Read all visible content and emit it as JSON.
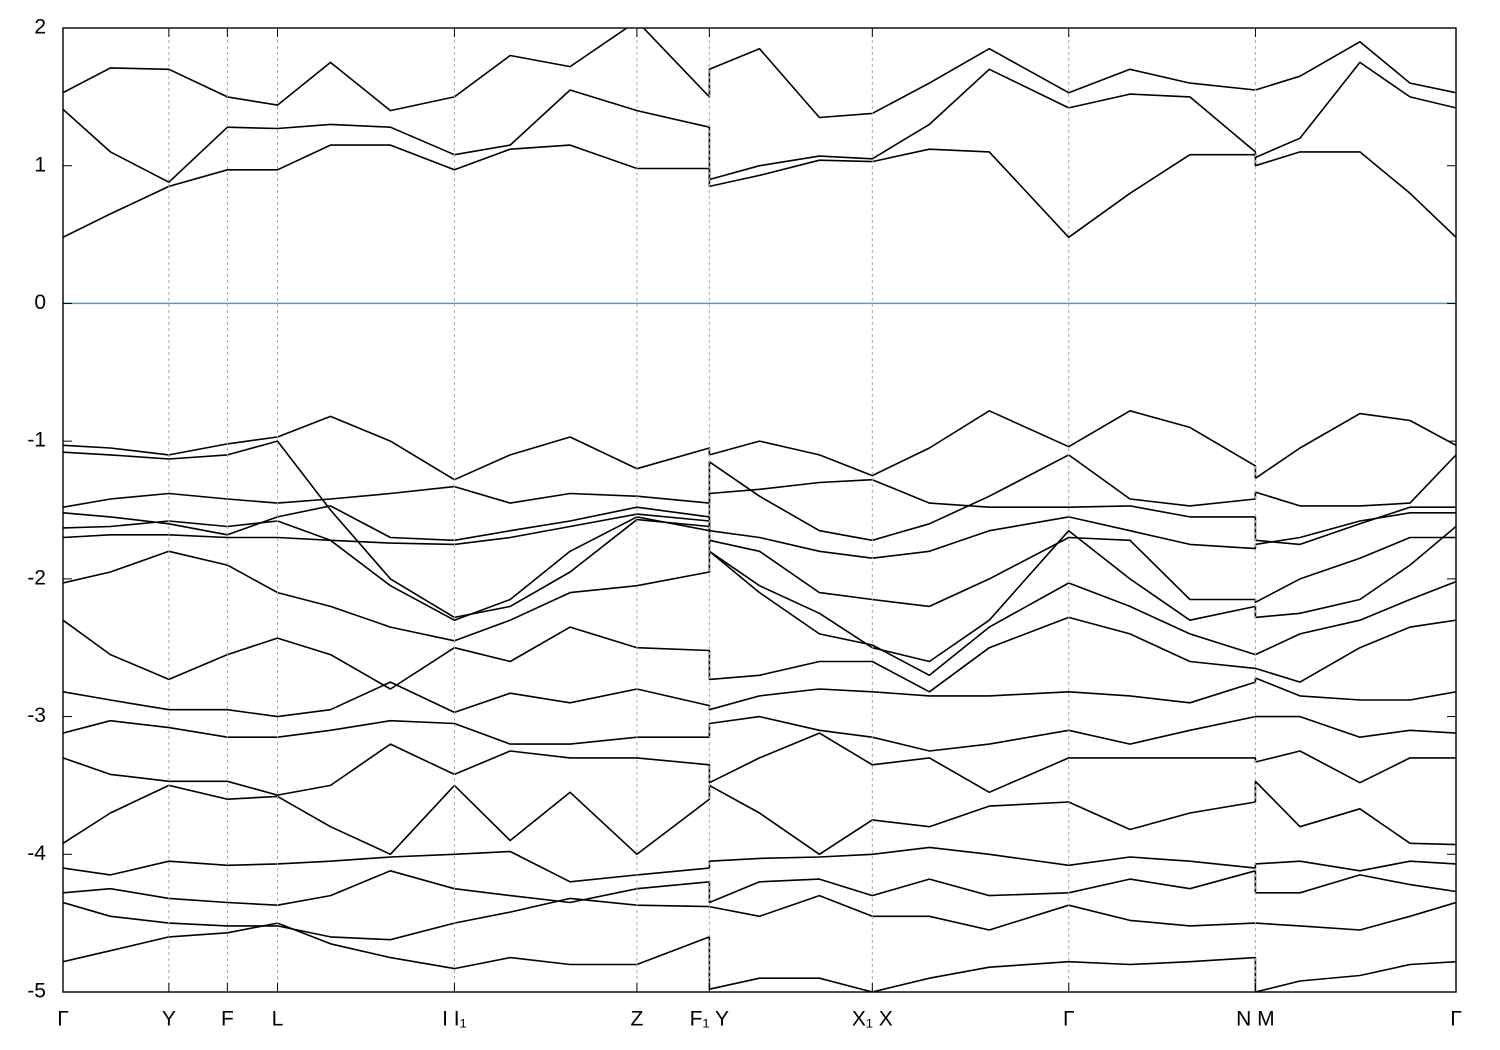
{
  "chart_data": {
    "type": "line",
    "color": "#000000",
    "fermi_level": 0,
    "fermi_color": "#4aa3c4",
    "grid": true,
    "xlim": [
      0,
      1
    ],
    "ylim": [
      -5,
      2
    ],
    "yticks": [
      2,
      1,
      0,
      -1,
      -2,
      -3,
      -4,
      -5
    ],
    "xticks": [
      {
        "value": 0,
        "label": "Γ"
      },
      {
        "value": 0.076,
        "label": "Y"
      },
      {
        "value": 0.118,
        "label": "F"
      },
      {
        "value": 0.154,
        "label": "L"
      },
      {
        "value": 0.281,
        "label": "I  I₁"
      },
      {
        "value": 0.412,
        "label": "Z"
      },
      {
        "value": 0.464,
        "label": "F₁ Y"
      },
      {
        "value": 0.581,
        "label": "X₁ X"
      },
      {
        "value": 0.722,
        "label": "Γ"
      },
      {
        "value": 0.856,
        "label": "N M"
      },
      {
        "value": 1,
        "label": "Γ"
      }
    ],
    "x": [
      0,
      0.034,
      0.076,
      0.118,
      0.154,
      0.192,
      0.235,
      0.281,
      0.321,
      0.364,
      0.412,
      0.464,
      0.464,
      0.5,
      0.543,
      0.581,
      0.622,
      0.665,
      0.722,
      0.766,
      0.809,
      0.856,
      0.856,
      0.888,
      0.931,
      0.967,
      1
    ],
    "series": [
      {
        "values": [
          0.48,
          0.65,
          0.85,
          0.97,
          0.97,
          1.15,
          1.15,
          0.97,
          1.12,
          1.15,
          0.98,
          0.98,
          0.85,
          0.93,
          1.04,
          1.03,
          1.12,
          1.1,
          0.48,
          0.8,
          1.08,
          1.08,
          1.0,
          1.1,
          1.1,
          0.8,
          0.48
        ]
      },
      {
        "values": [
          1.41,
          1.1,
          0.88,
          1.28,
          1.27,
          1.3,
          1.28,
          1.08,
          1.15,
          1.55,
          1.4,
          1.28,
          0.9,
          1.0,
          1.07,
          1.05,
          1.3,
          1.7,
          1.42,
          1.52,
          1.5,
          1.1,
          1.06,
          1.2,
          1.75,
          1.5,
          1.42
        ]
      },
      {
        "values": [
          1.53,
          1.71,
          1.7,
          1.5,
          1.44,
          1.75,
          1.4,
          1.5,
          1.8,
          1.72,
          2.05,
          1.5,
          1.7,
          1.85,
          1.35,
          1.38,
          1.6,
          1.85,
          1.53,
          1.7,
          1.6,
          1.55,
          1.55,
          1.65,
          1.9,
          1.6,
          1.53
        ]
      },
      {
        "values": [
          -1.03,
          -1.05,
          -1.1,
          -1.02,
          -0.97,
          -0.82,
          -1.0,
          -1.28,
          -1.1,
          -0.97,
          -1.2,
          -1.05,
          -1.1,
          -1.0,
          -1.1,
          -1.25,
          -1.05,
          -0.78,
          -1.04,
          -0.78,
          -0.9,
          -1.18,
          -1.27,
          -1.05,
          -0.8,
          -0.85,
          -1.03
        ]
      },
      {
        "values": [
          -1.08,
          -1.1,
          -1.13,
          -1.1,
          -1.0,
          -1.5,
          -2.0,
          -2.28,
          -2.2,
          -1.95,
          -1.57,
          -1.62,
          -1.15,
          -1.4,
          -1.65,
          -1.72,
          -1.6,
          -1.4,
          -1.1,
          -1.42,
          -1.47,
          -1.42,
          -1.37,
          -1.47,
          -1.47,
          -1.45,
          -1.1
        ]
      },
      {
        "values": [
          -1.48,
          -1.42,
          -1.38,
          -1.42,
          -1.45,
          -1.42,
          -1.38,
          -1.33,
          -1.45,
          -1.38,
          -1.4,
          -1.45,
          -1.38,
          -1.35,
          -1.3,
          -1.28,
          -1.45,
          -1.48,
          -1.48,
          -1.47,
          -1.55,
          -1.55,
          -1.72,
          -1.75,
          -1.6,
          -1.48,
          -1.48
        ]
      },
      {
        "values": [
          -1.52,
          -1.55,
          -1.6,
          -1.68,
          -1.55,
          -1.47,
          -1.7,
          -1.72,
          -1.65,
          -1.58,
          -1.48,
          -1.55,
          -1.65,
          -1.7,
          -1.8,
          -1.85,
          -1.8,
          -1.65,
          -1.55,
          -1.65,
          -1.75,
          -1.78,
          -1.75,
          -1.7,
          -1.58,
          -1.52,
          -1.52
        ]
      },
      {
        "values": [
          -1.63,
          -1.62,
          -1.58,
          -1.62,
          -1.58,
          -1.72,
          -1.74,
          -1.75,
          -1.7,
          -1.62,
          -1.53,
          -1.58,
          -1.72,
          -1.8,
          -2.1,
          -2.15,
          -2.2,
          -2.0,
          -1.7,
          -1.72,
          -2.15,
          -2.15,
          -2.17,
          -2.0,
          -1.85,
          -1.7,
          -1.7
        ]
      },
      {
        "values": [
          -1.7,
          -1.68,
          -1.68,
          -1.7,
          -1.7,
          -1.72,
          -2.05,
          -2.3,
          -2.15,
          -1.8,
          -1.55,
          -1.65,
          -1.8,
          -2.05,
          -2.25,
          -2.5,
          -2.6,
          -2.3,
          -1.65,
          -2.0,
          -2.3,
          -2.2,
          -2.28,
          -2.25,
          -2.15,
          -1.9,
          -1.62
        ]
      },
      {
        "values": [
          -2.03,
          -1.95,
          -1.8,
          -1.9,
          -2.1,
          -2.2,
          -2.35,
          -2.45,
          -2.3,
          -2.1,
          -2.05,
          -1.95,
          -1.8,
          -2.1,
          -2.4,
          -2.48,
          -2.7,
          -2.35,
          -2.03,
          -2.2,
          -2.4,
          -2.55,
          -2.55,
          -2.4,
          -2.3,
          -2.15,
          -2.02
        ]
      },
      {
        "values": [
          -2.3,
          -2.55,
          -2.73,
          -2.55,
          -2.43,
          -2.55,
          -2.8,
          -2.5,
          -2.6,
          -2.35,
          -2.5,
          -2.52,
          -2.73,
          -2.7,
          -2.6,
          -2.6,
          -2.82,
          -2.5,
          -2.28,
          -2.4,
          -2.6,
          -2.65,
          -2.65,
          -2.75,
          -2.5,
          -2.35,
          -2.3
        ]
      },
      {
        "values": [
          -2.82,
          -2.88,
          -2.95,
          -2.95,
          -3.0,
          -2.95,
          -2.75,
          -2.97,
          -2.83,
          -2.9,
          -2.8,
          -2.92,
          -2.95,
          -2.85,
          -2.8,
          -2.82,
          -2.85,
          -2.85,
          -2.82,
          -2.85,
          -2.9,
          -2.75,
          -2.72,
          -2.85,
          -2.88,
          -2.88,
          -2.82
        ]
      },
      {
        "values": [
          -3.12,
          -3.03,
          -3.08,
          -3.15,
          -3.15,
          -3.1,
          -3.03,
          -3.05,
          -3.2,
          -3.2,
          -3.15,
          -3.15,
          -3.05,
          -3.0,
          -3.1,
          -3.15,
          -3.25,
          -3.2,
          -3.1,
          -3.2,
          -3.1,
          -3.0,
          -3.0,
          -3.0,
          -3.15,
          -3.1,
          -3.12
        ]
      },
      {
        "values": [
          -3.3,
          -3.42,
          -3.47,
          -3.47,
          -3.57,
          -3.5,
          -3.2,
          -3.42,
          -3.25,
          -3.3,
          -3.3,
          -3.35,
          -3.48,
          -3.3,
          -3.12,
          -3.35,
          -3.3,
          -3.55,
          -3.3,
          -3.3,
          -3.3,
          -3.3,
          -3.33,
          -3.25,
          -3.48,
          -3.3,
          -3.3
        ]
      },
      {
        "values": [
          -3.92,
          -3.7,
          -3.5,
          -3.6,
          -3.58,
          -3.8,
          -4.0,
          -3.5,
          -3.9,
          -3.55,
          -4.0,
          -3.6,
          -3.5,
          -3.7,
          -4.0,
          -3.75,
          -3.8,
          -3.65,
          -3.62,
          -3.82,
          -3.7,
          -3.62,
          -3.47,
          -3.8,
          -3.67,
          -3.92,
          -3.93
        ]
      },
      {
        "values": [
          -4.1,
          -4.15,
          -4.05,
          -4.08,
          -4.07,
          -4.05,
          -4.02,
          -4.0,
          -3.98,
          -4.2,
          -4.15,
          -4.1,
          -4.05,
          -4.03,
          -4.02,
          -4.0,
          -3.95,
          -4.0,
          -4.08,
          -4.02,
          -4.05,
          -4.1,
          -4.07,
          -4.05,
          -4.12,
          -4.05,
          -4.07
        ]
      },
      {
        "values": [
          -4.28,
          -4.25,
          -4.32,
          -4.35,
          -4.37,
          -4.3,
          -4.12,
          -4.25,
          -4.3,
          -4.35,
          -4.25,
          -4.2,
          -4.35,
          -4.2,
          -4.18,
          -4.3,
          -4.18,
          -4.3,
          -4.28,
          -4.18,
          -4.25,
          -4.12,
          -4.28,
          -4.28,
          -4.15,
          -4.22,
          -4.27
        ]
      },
      {
        "values": [
          -4.35,
          -4.45,
          -4.5,
          -4.52,
          -4.52,
          -4.6,
          -4.62,
          -4.5,
          -4.42,
          -4.32,
          -4.37,
          -4.38,
          -4.38,
          -4.45,
          -4.3,
          -4.45,
          -4.45,
          -4.55,
          -4.37,
          -4.48,
          -4.52,
          -4.5,
          -4.5,
          -4.52,
          -4.55,
          -4.45,
          -4.35
        ]
      },
      {
        "values": [
          -4.78,
          -4.7,
          -4.6,
          -4.57,
          -4.5,
          -4.65,
          -4.75,
          -4.83,
          -4.75,
          -4.8,
          -4.8,
          -4.6,
          -4.98,
          -4.9,
          -4.9,
          -5.0,
          -4.9,
          -4.82,
          -4.78,
          -4.8,
          -4.78,
          -4.75,
          -5.0,
          -4.92,
          -4.88,
          -4.8,
          -4.78
        ]
      }
    ]
  }
}
